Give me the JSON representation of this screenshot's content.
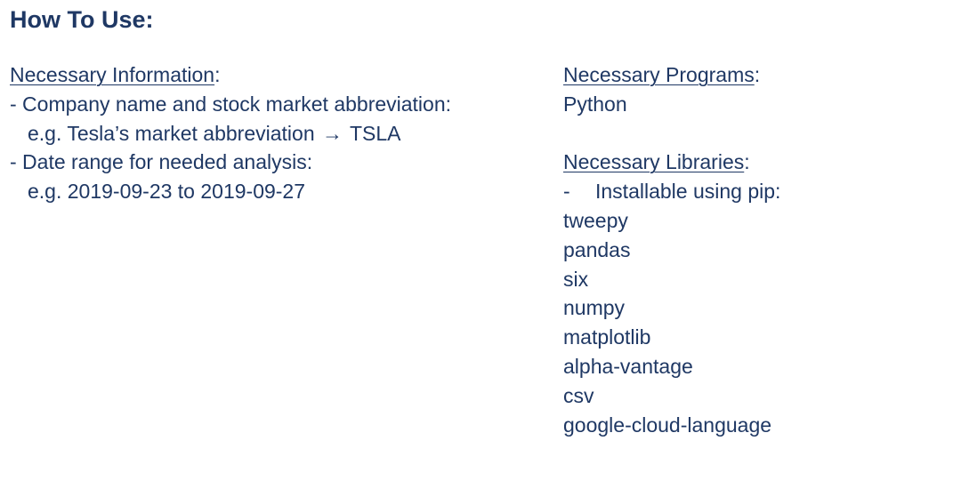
{
  "title": "How To Use:",
  "left": {
    "heading": "Necessary Information",
    "heading_suffix": ":",
    "item1": "- Company name and stock market abbreviation:",
    "item1_example_prefix": "e.g. Tesla’s market abbreviation ",
    "item1_example_arrow": "→",
    "item1_example_suffix": " TSLA",
    "item2": "- Date range for needed analysis:",
    "item2_example": "e.g. 2019-09-23 to 2019-09-27"
  },
  "right": {
    "programs_heading": "Necessary Programs",
    "programs_suffix": ":",
    "programs": [
      "Python"
    ],
    "libraries_heading": "Necessary Libraries",
    "libraries_suffix": ":",
    "install_dash": "-",
    "install_note": "Installable using pip:",
    "libraries": [
      "tweepy",
      "pandas",
      "six",
      "numpy",
      "matplotlib",
      "alpha-vantage",
      "csv",
      "google-cloud-language"
    ]
  }
}
